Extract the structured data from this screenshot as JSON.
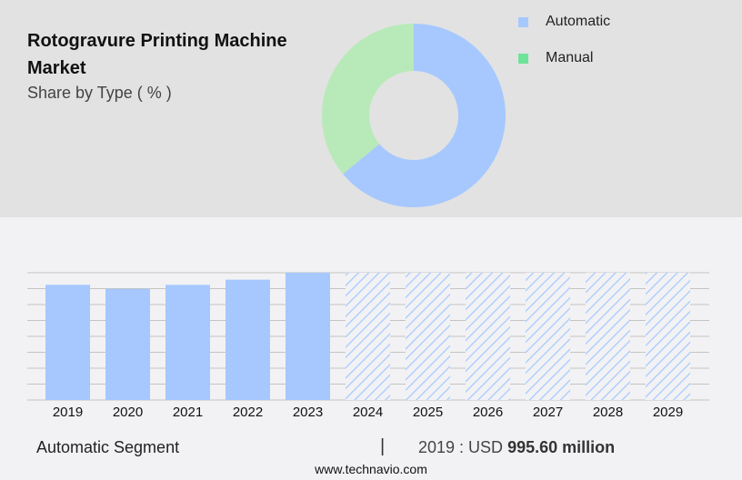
{
  "header": {
    "title": "Rotogravure Printing Machine Market",
    "subtitle": "Share by Type ( % )"
  },
  "legend": [
    {
      "label": "Automatic",
      "color": "#a6c8ff"
    },
    {
      "label": "Manual",
      "color": "#6ee39a"
    }
  ],
  "footer": {
    "segment": "Automatic Segment",
    "separator": "|",
    "value_prefix": "2019 : USD ",
    "value_bold": "995.60 million",
    "website": "www.technavio.com"
  },
  "chart_data": [
    {
      "type": "pie",
      "variant": "donut",
      "title": "Rotogravure Printing Machine Market",
      "subtitle": "Share by Type ( % )",
      "categories": [
        "Automatic",
        "Manual"
      ],
      "values": [
        64,
        36
      ],
      "colors": [
        "#a6c8ff",
        "#b7eab8"
      ],
      "legend_position": "right"
    },
    {
      "type": "bar",
      "title": "Automatic Segment",
      "categories": [
        "2019",
        "2020",
        "2021",
        "2022",
        "2023",
        "2024",
        "2025",
        "2026",
        "2027",
        "2028",
        "2029"
      ],
      "values": [
        995.6,
        960,
        995,
        1040,
        1100,
        null,
        null,
        null,
        null,
        null,
        null
      ],
      "forecast_categories": [
        "2024",
        "2025",
        "2026",
        "2027",
        "2028",
        "2029"
      ],
      "forecast_style": "hatched, full height (values not shown)",
      "annotation": "2019 : USD 995.60 million",
      "xlabel": "",
      "ylabel": "",
      "grid": true,
      "color": "#a6c8ff"
    }
  ]
}
